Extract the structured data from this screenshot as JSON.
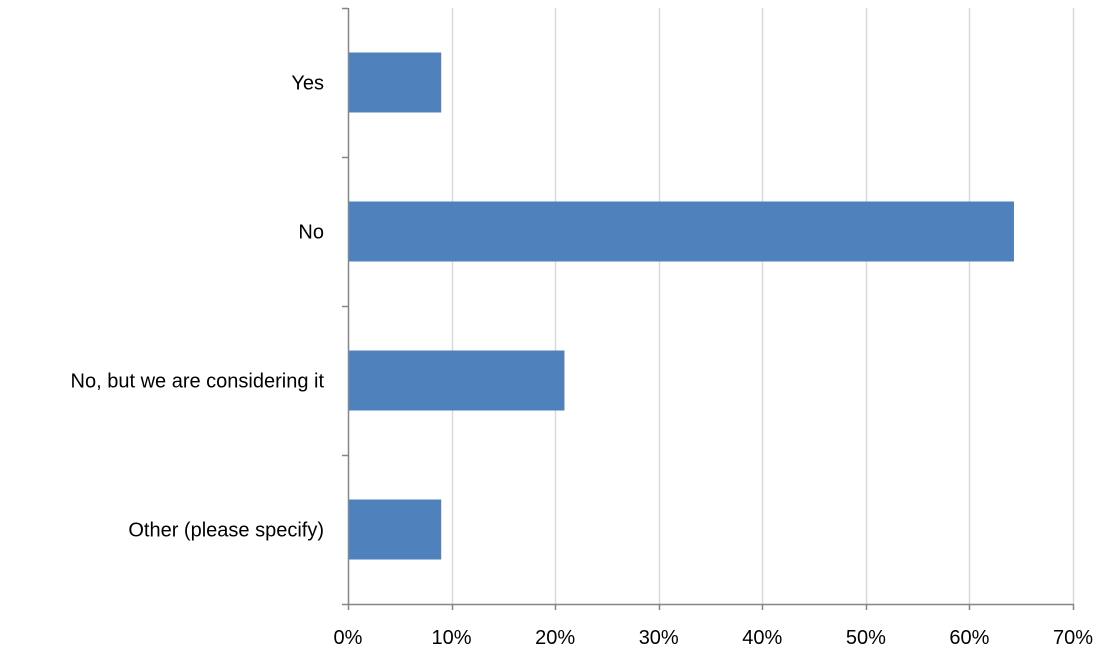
{
  "chart_data": {
    "type": "bar",
    "orientation": "horizontal",
    "categories": [
      "Yes",
      "No",
      "No, but we are considering it",
      "Other (please specify)"
    ],
    "values": [
      9,
      64.3,
      20.9,
      9
    ],
    "value_format": "percent",
    "xlim": [
      0,
      70
    ],
    "xticks": [
      0,
      10,
      20,
      30,
      40,
      50,
      60,
      70
    ],
    "xtick_labels": [
      "0%",
      "10%",
      "20%",
      "30%",
      "40%",
      "50%",
      "60%",
      "70%"
    ],
    "grid": "vertical",
    "legend": "none",
    "title": "",
    "xlabel": "",
    "ylabel": "",
    "colors": {
      "bar": "#4f81bd",
      "grid": "#d9d9d9",
      "axis": "#868686"
    }
  }
}
